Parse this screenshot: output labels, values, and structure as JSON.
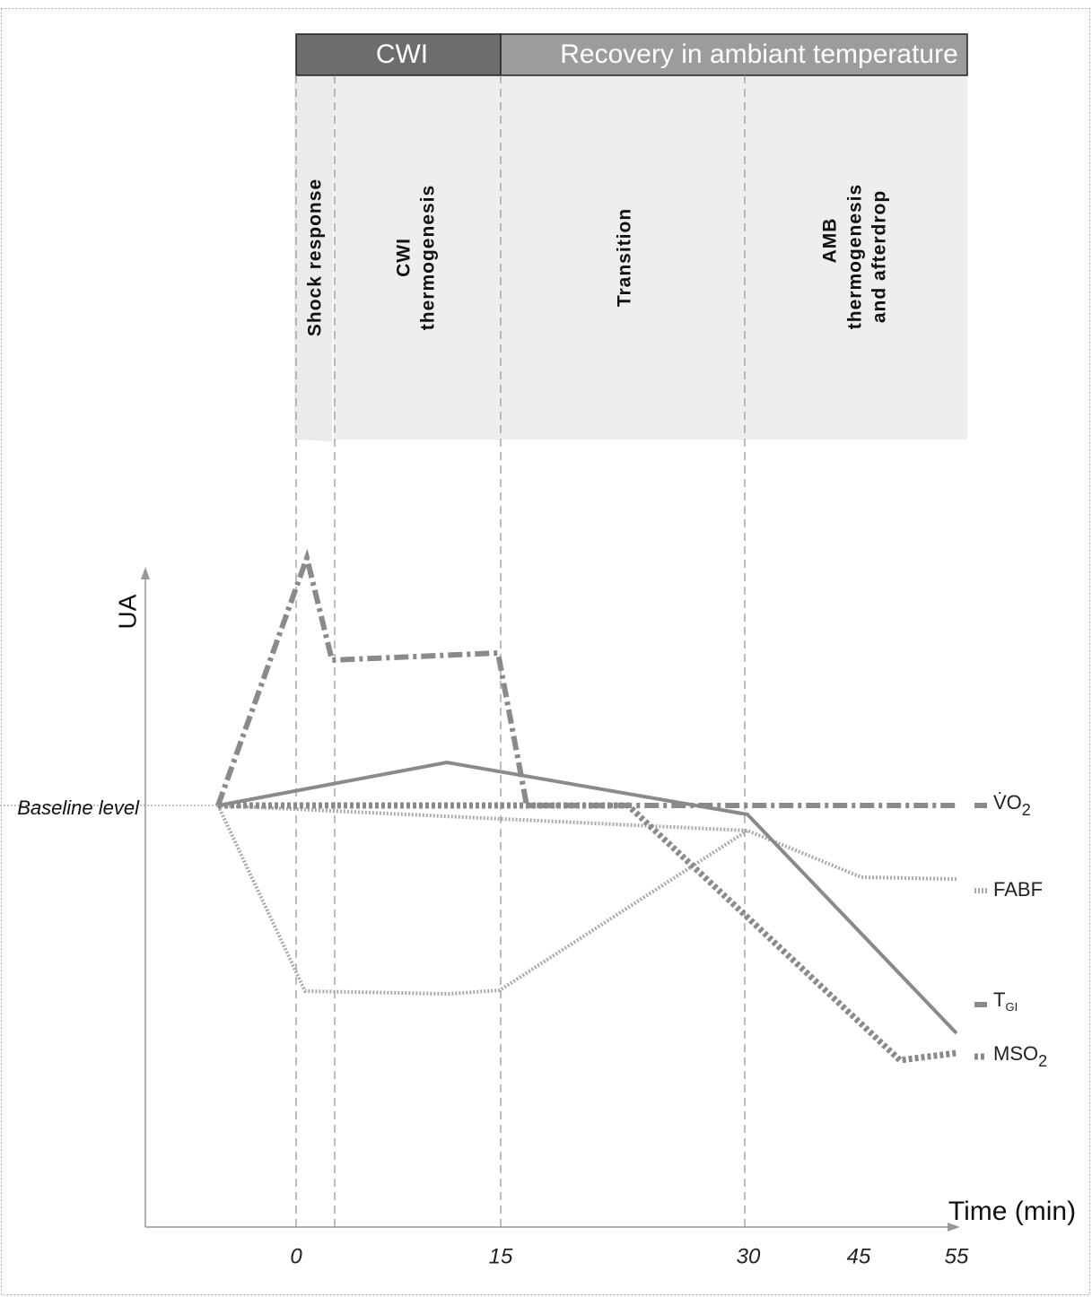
{
  "header": {
    "phases": [
      "CWI",
      "Recovery in ambiant temperature"
    ]
  },
  "stages": [
    {
      "lines": [
        "Shock response"
      ]
    },
    {
      "lines": [
        "CWI",
        "thermogenesis"
      ]
    },
    {
      "lines": [
        "Transition"
      ]
    },
    {
      "lines": [
        "AMB",
        "thermogenesis",
        "and afterdrop"
      ]
    }
  ],
  "axes": {
    "y_label": "UA",
    "x_label": "Time (min)",
    "baseline": "Baseline level",
    "x_ticks": [
      "0",
      "15",
      "30",
      "45",
      "55"
    ]
  },
  "legend": [
    {
      "text": "V̇O",
      "sub": "2"
    },
    {
      "text": "FABF"
    },
    {
      "text": "T",
      "sub": "GI"
    },
    {
      "text": "MSO",
      "sub": "2"
    }
  ]
}
